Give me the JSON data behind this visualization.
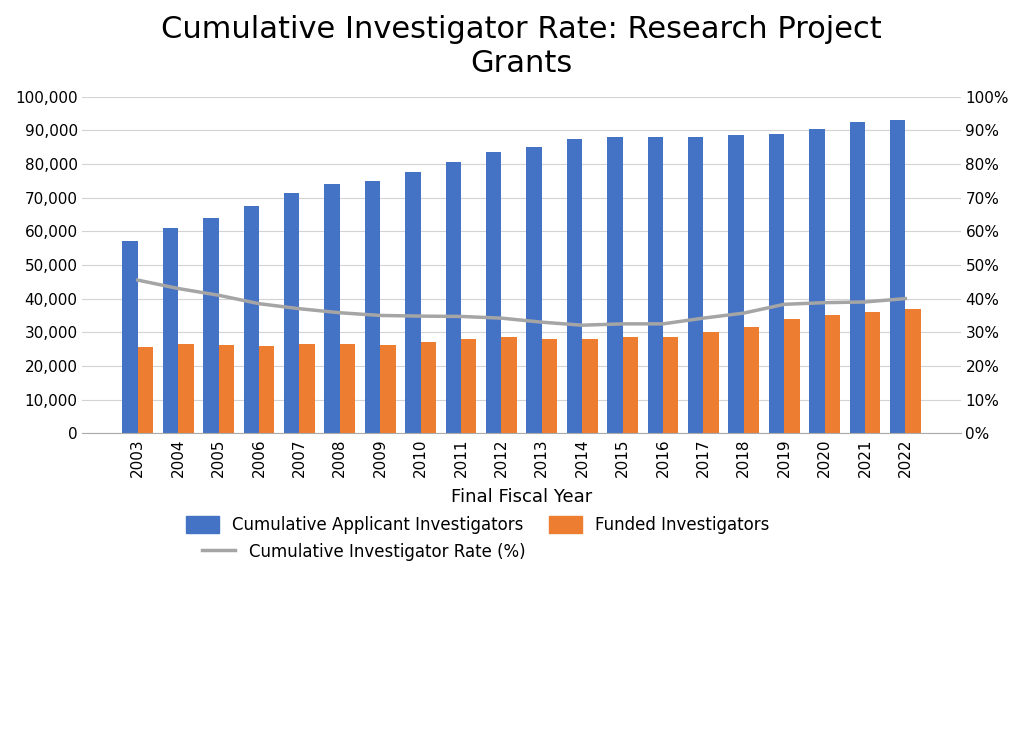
{
  "years": [
    2003,
    2004,
    2005,
    2006,
    2007,
    2008,
    2009,
    2010,
    2011,
    2012,
    2013,
    2014,
    2015,
    2016,
    2017,
    2018,
    2019,
    2020,
    2021,
    2022
  ],
  "cumulative_applicants": [
    57000,
    61000,
    64000,
    67500,
    71500,
    74000,
    75000,
    77500,
    80500,
    83500,
    85000,
    87500,
    88000,
    88000,
    88000,
    88500,
    89000,
    90500,
    92500,
    93000
  ],
  "funded_investigators": [
    25500,
    26500,
    26200,
    26000,
    26500,
    26500,
    26200,
    27000,
    28000,
    28500,
    28000,
    28000,
    28500,
    28500,
    30000,
    31500,
    34000,
    35000,
    36000,
    37000
  ],
  "cumulative_rate": [
    0.455,
    0.43,
    0.41,
    0.385,
    0.37,
    0.358,
    0.35,
    0.348,
    0.347,
    0.342,
    0.33,
    0.321,
    0.325,
    0.325,
    0.342,
    0.357,
    0.383,
    0.388,
    0.39,
    0.4
  ],
  "bar_color_blue": "#4472C4",
  "bar_color_orange": "#ED7D31",
  "line_color": "#A5A5A5",
  "title": "Cumulative Investigator Rate: Research Project\nGrants",
  "xlabel": "Final Fiscal Year",
  "ylim_left": [
    0,
    100000
  ],
  "ylim_right": [
    0,
    1.0
  ],
  "yticks_left": [
    0,
    10000,
    20000,
    30000,
    40000,
    50000,
    60000,
    70000,
    80000,
    90000,
    100000
  ],
  "yticks_right": [
    0.0,
    0.1,
    0.2,
    0.3,
    0.4,
    0.5,
    0.6,
    0.7,
    0.8,
    0.9,
    1.0
  ],
  "legend_label_blue": "Cumulative Applicant Investigators",
  "legend_label_orange": "Funded Investigators",
  "legend_label_line": "Cumulative Investigator Rate (%)",
  "title_fontsize": 22,
  "axis_label_fontsize": 13,
  "tick_fontsize": 11,
  "legend_fontsize": 12,
  "background_color": "#FFFFFF",
  "bar_width": 0.38
}
